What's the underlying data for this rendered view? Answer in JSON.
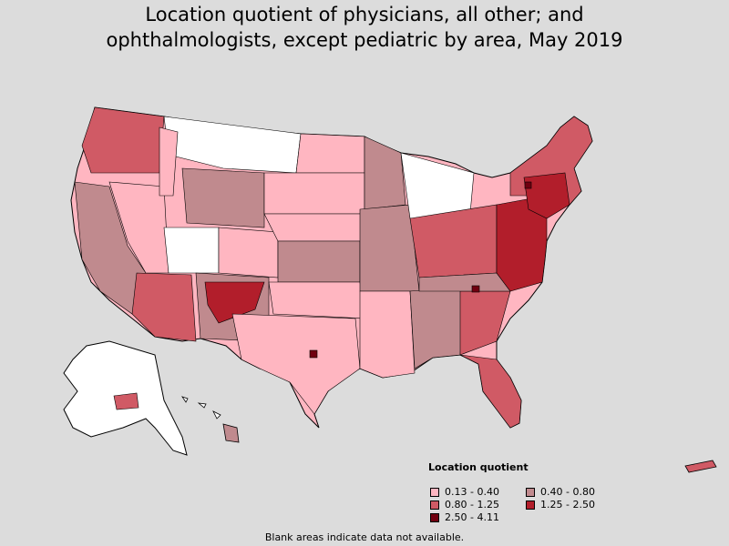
{
  "title": {
    "line1": "Location quotient of physicians, all other; and",
    "line2": "ophthalmologists, except pediatric by area, May 2019"
  },
  "legend": {
    "title": "Location quotient",
    "items": [
      {
        "label": "0.13 - 0.40",
        "color": "#ffb6c1"
      },
      {
        "label": "0.40 - 0.80",
        "color": "#c08a8e"
      },
      {
        "label": "0.80 - 1.25",
        "color": "#d05a65"
      },
      {
        "label": "1.25 - 2.50",
        "color": "#b21e2b"
      },
      {
        "label": "2.50 - 4.11",
        "color": "#700010"
      }
    ]
  },
  "footnote": "Blank areas indicate data not available.",
  "colors": {
    "background": "#dcdcdc",
    "no_data": "#ffffff",
    "border": "#000000"
  }
}
